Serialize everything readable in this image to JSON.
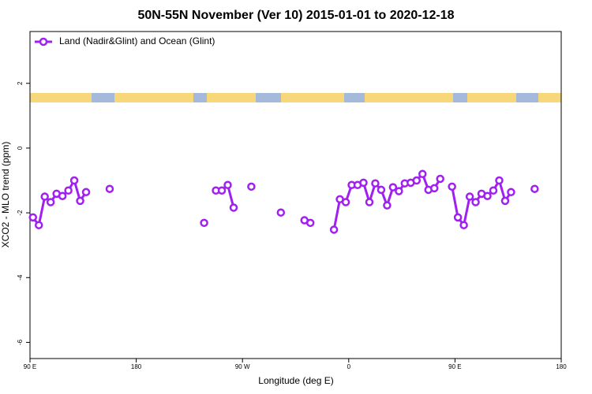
{
  "chart_data": {
    "type": "line",
    "title": "50N-55N November (Ver 10)   2015-01-01 to 2020-12-18",
    "x_label": "Longitude (deg E)",
    "y_label": "XCO2 - MLO trend (ppm)",
    "x": [
      92.5,
      97.5,
      102.5,
      107.5,
      112.5,
      117.5,
      122.5,
      127.5,
      132.5,
      137.5,
      142.5,
      147.5,
      152.5,
      157.5,
      162.5,
      167.5,
      172.5,
      177.5,
      182.5,
      187.5,
      192.5,
      197.5,
      202.5,
      207.5,
      212.5,
      217.5,
      222.5,
      227.5,
      232.5,
      237.5,
      242.5,
      247.5,
      252.5,
      257.5,
      262.5,
      267.5,
      272.5,
      277.5,
      282.5,
      287.5,
      292.5,
      297.5,
      302.5,
      307.5,
      312.5,
      317.5,
      322.5,
      327.5,
      332.5,
      337.5,
      342.5,
      347.5,
      352.5,
      357.5,
      362.5,
      367.5,
      372.5,
      377.5,
      382.5,
      387.5,
      392.5,
      397.5,
      402.5,
      407.5,
      412.5,
      417.5,
      422.5,
      427.5,
      432.5,
      437.5,
      442.5,
      447.5,
      452.5,
      457.5,
      462.5,
      467.5,
      472.5,
      477.5,
      482.5,
      487.5,
      492.5,
      497.5,
      502.5,
      507.5,
      512.5,
      517.5
    ],
    "series": [
      {
        "name": "Land (Nadir&Glint) and Ocean (Glint)",
        "color": "#a020f0",
        "values": [
          -2.14,
          -2.38,
          -1.5,
          -1.67,
          -1.41,
          -1.48,
          -1.31,
          -1.0,
          -1.63,
          -1.36,
          null,
          null,
          null,
          -1.26,
          null,
          null,
          null,
          null,
          null,
          null,
          null,
          null,
          null,
          null,
          null,
          null,
          null,
          null,
          null,
          -2.31,
          null,
          -1.31,
          -1.31,
          -1.14,
          -1.84,
          null,
          null,
          -1.19,
          null,
          null,
          null,
          null,
          -1.99,
          null,
          null,
          null,
          -2.23,
          -2.31,
          null,
          null,
          null,
          -2.52,
          -1.58,
          -1.67,
          -1.14,
          -1.14,
          -1.07,
          -1.67,
          -1.09,
          -1.29,
          -1.77,
          -1.21,
          -1.33,
          -1.09,
          -1.07,
          -1.0,
          -0.8,
          -1.29,
          -1.24,
          -0.95,
          null,
          -1.19,
          -2.14,
          -2.38,
          -1.5,
          -1.67,
          -1.41,
          -1.48,
          -1.31,
          -1.0,
          -1.63,
          -1.36,
          null,
          null,
          null,
          -1.26
        ]
      }
    ],
    "xlim": [
      90,
      540
    ],
    "xticks": [
      {
        "value": 90,
        "label": "90 E"
      },
      180,
      {
        "value": 270,
        "label": "90 W"
      },
      {
        "value": 360,
        "label": "0"
      },
      {
        "value": 450,
        "label": "90 E"
      },
      {
        "value": 540,
        "label": "180"
      }
    ],
    "ylim": [
      -6.5,
      3.6
    ],
    "yticks": [
      2,
      0,
      -2,
      -4,
      -6
    ],
    "legend": "top-left"
  }
}
